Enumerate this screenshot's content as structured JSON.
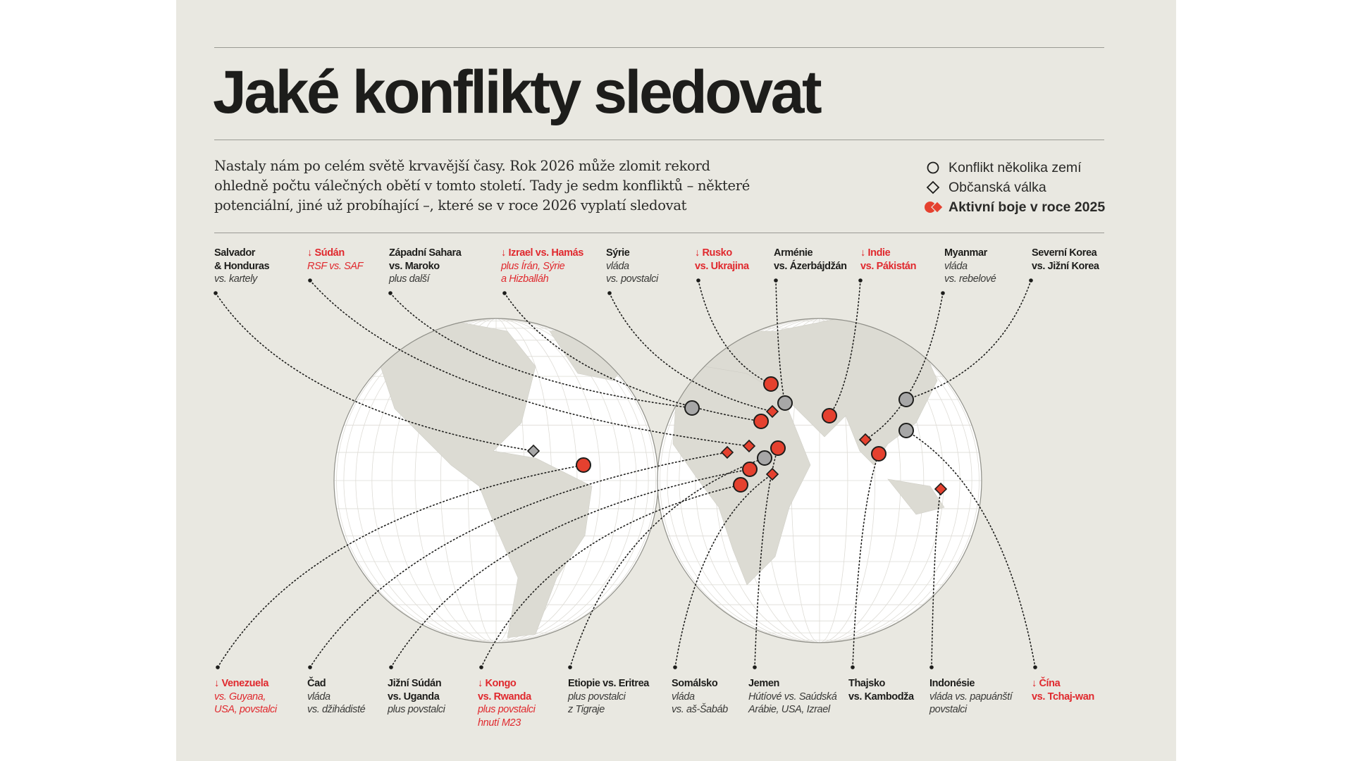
{
  "title": "Jaké konflikty sledovat",
  "intro": "Nastaly nám po celém světě krvavější časy. Rok 2026 může zlomit rekord ohledně počtu válečných obětí v tomto století. Tady je sedm konfliktů – některé potenciální, jiné už probíhající –, které se v roce 2026 vyplatí sledovat",
  "legend": [
    {
      "icon": "circle-outline-icon",
      "label": "Konflikt několika zemí"
    },
    {
      "icon": "diamond-outline-icon",
      "label": "Občanská válka"
    },
    {
      "icon": "red-circle-diamond-icon",
      "label": "Aktivní boje v roce 2025"
    }
  ],
  "colors": {
    "active": "#e5412f",
    "inactive": "#a7a7a7",
    "highlight_text": "#e0292e",
    "background": "#e9e8e1"
  },
  "conflicts_top": [
    {
      "title": "Salvador\n& Honduras",
      "sub": "vs. kartely",
      "marker": "diamond",
      "active": false,
      "watch": false
    },
    {
      "title": "↓ Súdán",
      "sub": "RSF vs. SAF",
      "marker": "diamond",
      "active": true,
      "watch": true
    },
    {
      "title": "Západní Sahara\nvs. Maroko",
      "sub": "plus další",
      "marker": "circle",
      "active": false,
      "watch": false
    },
    {
      "title": "↓ Izrael vs. Hamás",
      "sub": "plus Írán, Sýrie\na Hizballáh",
      "marker": "circle",
      "active": true,
      "watch": true
    },
    {
      "title": "Sýrie",
      "sub": "vláda\nvs. povstalci",
      "marker": "diamond",
      "active": true,
      "watch": false
    },
    {
      "title": "↓ Rusko\nvs. Ukrajina",
      "sub": "",
      "marker": "circle",
      "active": true,
      "watch": true
    },
    {
      "title": "Arménie\nvs. Ázerbájdžán",
      "sub": "",
      "marker": "circle",
      "active": false,
      "watch": false
    },
    {
      "title": "↓ Indie\nvs. Pákistán",
      "sub": "",
      "marker": "circle",
      "active": true,
      "watch": true
    },
    {
      "title": "Myanmar",
      "sub": "vláda\nvs. rebelové",
      "marker": "diamond",
      "active": true,
      "watch": false
    },
    {
      "title": "Severní Korea\nvs. Jižní Korea",
      "sub": "",
      "marker": "circle",
      "active": false,
      "watch": false
    }
  ],
  "conflicts_bottom": [
    {
      "title": "↓ Venezuela",
      "sub": "vs. Guyana,\nUSA, povstalci",
      "marker": "circle",
      "active": true,
      "watch": true
    },
    {
      "title": "Čad",
      "sub": "vláda\nvs. džihádisté",
      "marker": "diamond",
      "active": true,
      "watch": false
    },
    {
      "title": "Jižní Súdán\nvs. Uganda",
      "sub": "plus povstalci",
      "marker": "circle",
      "active": true,
      "watch": false
    },
    {
      "title": "↓ Kongo\nvs. Rwanda",
      "sub": "plus povstalci\nhnutí M23",
      "marker": "circle",
      "active": true,
      "watch": true
    },
    {
      "title": "Etiopie vs. Eritrea",
      "sub": "plus povstalci\nz Tigraje",
      "marker": "circle",
      "active": false,
      "watch": false
    },
    {
      "title": "Somálsko",
      "sub": "vláda\nvs. aš-Šabáb",
      "marker": "diamond",
      "active": true,
      "watch": false
    },
    {
      "title": "Jemen",
      "sub": "Hútíové vs. Saúdská\nArábie, USA, Izrael",
      "marker": "circle",
      "active": true,
      "watch": false
    },
    {
      "title": "Thajsko\nvs. Kambodža",
      "sub": "",
      "marker": "circle",
      "active": true,
      "watch": false
    },
    {
      "title": "Indonésie",
      "sub": "vláda vs. papuánští\npovstalci",
      "marker": "diamond",
      "active": true,
      "watch": false
    },
    {
      "title": "↓ Čína\nvs. Tchaj-wan",
      "sub": "",
      "marker": "circle",
      "active": false,
      "watch": true
    }
  ]
}
